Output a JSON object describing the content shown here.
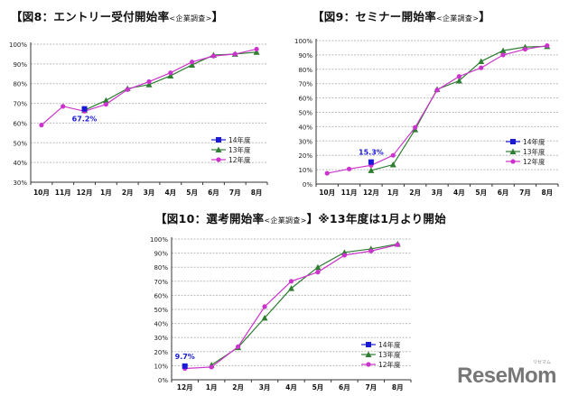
{
  "legend_labels": [
    "14年度",
    "13年度",
    "12年度"
  ],
  "colors": {
    "y14": "#1a1ad6",
    "y13": "#2e7d32",
    "y12": "#cc33cc",
    "grid": "#bbbbbb",
    "axis": "#333333",
    "label14": "#1a1ad6"
  },
  "logo": {
    "text": "ReseMom",
    "kana": "リセマム"
  },
  "charts": [
    {
      "title_main": "【図8：エントリー受付開始率",
      "title_sub": "<企業調査>",
      "title_end": "】",
      "annotation": "67.2%"
    },
    {
      "title_main": "【図9：セミナー開始率",
      "title_sub": "<企業調査>",
      "title_end": "】",
      "annotation": "15.3%"
    },
    {
      "title_main": "【図10：選考開始率",
      "title_sub": "<企業調査>",
      "title_end": "】※13年度は1月より開始",
      "annotation": "9.7%"
    }
  ],
  "chart_data": [
    {
      "type": "line",
      "title": "図8：エントリー受付開始率 <企業調査>",
      "categories": [
        "10月",
        "11月",
        "12月",
        "1月",
        "2月",
        "3月",
        "4月",
        "5月",
        "6月",
        "7月",
        "8月"
      ],
      "ylim": [
        30,
        100
      ],
      "yticks": [
        "30%",
        "40%",
        "50%",
        "60%",
        "70%",
        "80%",
        "90%",
        "100%"
      ],
      "grid": true,
      "legend_position": "lower right",
      "series": [
        {
          "name": "14年度",
          "values": [
            null,
            null,
            67.2,
            null,
            null,
            null,
            null,
            null,
            null,
            null,
            null
          ]
        },
        {
          "name": "13年度",
          "values": [
            null,
            null,
            66.5,
            71.5,
            77.5,
            79.5,
            84,
            89.5,
            94.5,
            95,
            96
          ]
        },
        {
          "name": "12年度",
          "values": [
            59,
            68.5,
            66,
            69.5,
            77,
            81,
            85.5,
            91,
            94,
            95,
            97.5
          ]
        }
      ],
      "annotations": [
        "67.2%"
      ]
    },
    {
      "type": "line",
      "title": "図9：セミナー開始率 <企業調査>",
      "categories": [
        "10月",
        "11月",
        "12月",
        "1月",
        "2月",
        "3月",
        "4月",
        "5月",
        "6月",
        "7月",
        "8月"
      ],
      "ylim": [
        0,
        100
      ],
      "yticks": [
        "0%",
        "10%",
        "20%",
        "30%",
        "40%",
        "50%",
        "60%",
        "70%",
        "80%",
        "90%",
        "100%"
      ],
      "grid": true,
      "legend_position": "lower right",
      "series": [
        {
          "name": "14年度",
          "values": [
            null,
            null,
            15.3,
            null,
            null,
            null,
            null,
            null,
            null,
            null,
            null
          ]
        },
        {
          "name": "13年度",
          "values": [
            null,
            null,
            9.5,
            13.5,
            38,
            66,
            72,
            85.5,
            93,
            95.5,
            96
          ]
        },
        {
          "name": "12年度",
          "values": [
            7.5,
            10.5,
            13,
            20,
            39.5,
            65.5,
            75,
            81,
            90,
            94,
            96.5
          ]
        }
      ],
      "annotations": [
        "15.3%"
      ]
    },
    {
      "type": "line",
      "title": "図10：選考開始率 <企業調査> ※13年度は1月より開始",
      "categories": [
        "12月",
        "1月",
        "2月",
        "3月",
        "4月",
        "5月",
        "6月",
        "7月",
        "8月"
      ],
      "ylim": [
        0,
        100
      ],
      "yticks": [
        "0%",
        "10%",
        "20%",
        "30%",
        "40%",
        "50%",
        "60%",
        "70%",
        "80%",
        "90%",
        "100%"
      ],
      "grid": true,
      "legend_position": "lower right",
      "series": [
        {
          "name": "14年度",
          "values": [
            9.7,
            null,
            null,
            null,
            null,
            null,
            null,
            null,
            null
          ]
        },
        {
          "name": "13年度",
          "values": [
            null,
            10.5,
            23,
            44,
            65,
            80,
            90.5,
            93,
            96.5
          ]
        },
        {
          "name": "12年度",
          "values": [
            8,
            9,
            23.5,
            52,
            70,
            76.5,
            88.5,
            91.5,
            96
          ]
        }
      ],
      "annotations": [
        "9.7%"
      ]
    }
  ]
}
